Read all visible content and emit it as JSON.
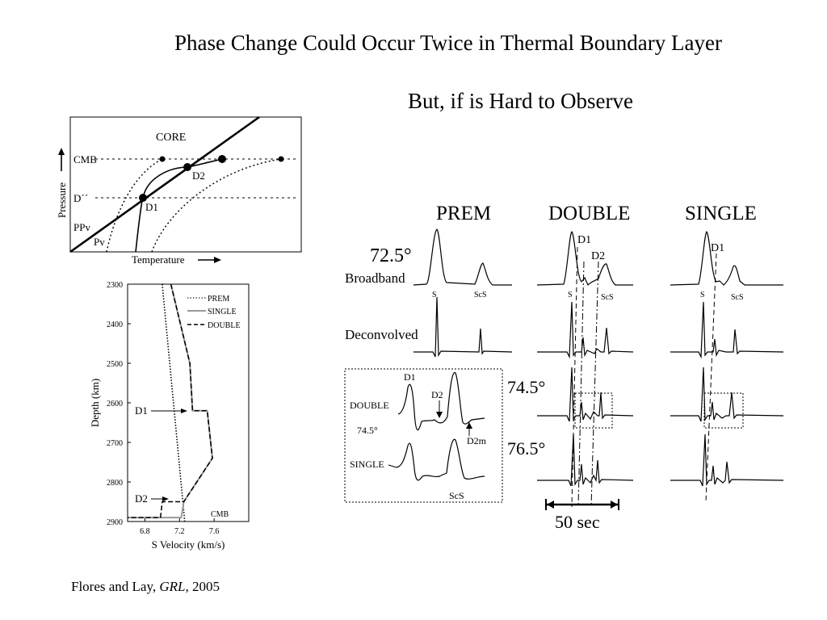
{
  "slide": {
    "title": "Phase Change Could Occur Twice in Thermal Boundary Layer",
    "subtitle": "But, if is Hard to Observe",
    "citation": {
      "prefix": "Flores and Lay, ",
      "journal": "GRL",
      "suffix": ", 2005"
    }
  },
  "phase_diagram": {
    "labels": {
      "core": "CORE",
      "cmb": "CMB",
      "d_double_prime": "D´´",
      "ppv": "PPv",
      "pv": "Pv",
      "d1": "D1",
      "d2": "D2",
      "x_axis": "Temperature",
      "y_axis": "Pressure"
    }
  },
  "chart_data": {
    "type": "line",
    "xlabel": "S Velocity (km/s)",
    "ylabel": "Depth (km)",
    "xlim": [
      6.6,
      8.0
    ],
    "ylim": [
      2900,
      2300
    ],
    "x_ticks": [
      "6.8",
      "7.2",
      "7.6"
    ],
    "y_ticks": [
      "2300",
      "2400",
      "2500",
      "2600",
      "2700",
      "2800",
      "2900"
    ],
    "legend": [
      "PREM",
      "SINGLE",
      "DOUBLE"
    ],
    "legend_position": "top-right",
    "annotations": [
      "D1",
      "D2",
      "CMB"
    ],
    "series": [
      {
        "name": "PREM",
        "points": [
          [
            7.0,
            2300
          ],
          [
            7.26,
            2900
          ]
        ]
      },
      {
        "name": "SINGLE",
        "points": [
          [
            7.1,
            2300
          ],
          [
            7.32,
            2500
          ],
          [
            7.35,
            2620
          ],
          [
            7.52,
            2620
          ],
          [
            7.58,
            2740
          ],
          [
            7.25,
            2850
          ],
          [
            7.22,
            2890
          ],
          [
            6.6,
            2890
          ]
        ]
      },
      {
        "name": "DOUBLE",
        "points": [
          [
            7.1,
            2300
          ],
          [
            7.32,
            2500
          ],
          [
            7.35,
            2620
          ],
          [
            7.52,
            2620
          ],
          [
            7.58,
            2740
          ],
          [
            7.25,
            2850
          ],
          [
            7.0,
            2850
          ],
          [
            6.98,
            2890
          ],
          [
            6.6,
            2890
          ]
        ]
      }
    ]
  },
  "waveforms": {
    "column_headers": [
      "PREM",
      "DOUBLE",
      "SINGLE"
    ],
    "distances": [
      "72.5°",
      "74.5°",
      "76.5°"
    ],
    "row_labels": {
      "broadband": "Broadband",
      "deconvolved": "Deconvolved"
    },
    "phase_labels": {
      "s": "S",
      "scs": "ScS",
      "d1": "D1",
      "d2": "D2"
    },
    "inset": {
      "double": "DOUBLE",
      "single": "SINGLE",
      "distance": "74.5°",
      "d1": "D1",
      "d2": "D2",
      "d2m": "D2m",
      "scs": "ScS"
    },
    "scale_bar": "50 sec"
  }
}
